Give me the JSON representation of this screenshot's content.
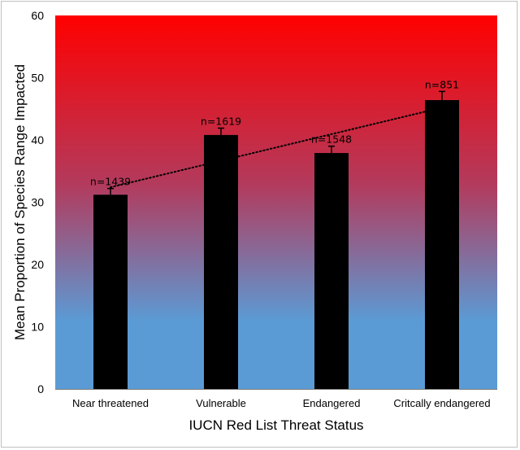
{
  "chart_data": {
    "type": "bar",
    "xlabel": "IUCN Red List Threat Status",
    "ylabel": "Mean Proportion of Species Range Impacted",
    "ylim": [
      0,
      60
    ],
    "yticks": [
      0,
      10,
      20,
      30,
      40,
      50,
      60
    ],
    "categories": [
      "Near threatened",
      "Vulnerable",
      "Endangered",
      "Critcally endangered"
    ],
    "values": [
      31.2,
      40.8,
      37.9,
      46.4
    ],
    "error": [
      1.0,
      1.1,
      1.1,
      1.4
    ],
    "sample_labels": [
      "n=1439",
      "n=1619",
      "n=1548",
      "n=851"
    ],
    "trendline": {
      "style": "dotted",
      "type": "linear",
      "from": 32.4,
      "to": 45.2
    },
    "grid": false,
    "legend": "none",
    "colors": {
      "bar": "#000000",
      "background_top": "#ff0000",
      "background_mid": "#b33a5c",
      "background_bottom": "#5b9bd5"
    }
  }
}
